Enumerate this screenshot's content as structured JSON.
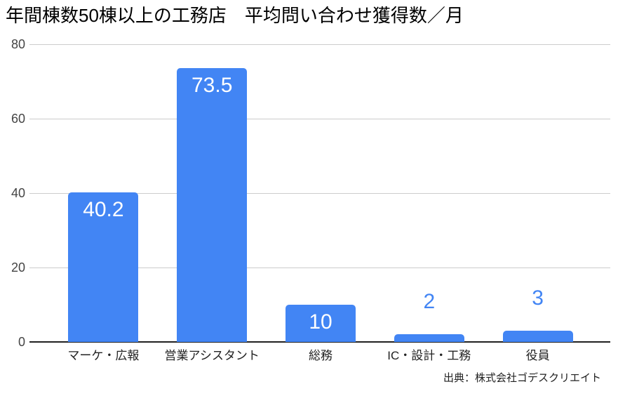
{
  "chart_data": {
    "type": "bar",
    "title": "年間棟数50棟以上の工務店　平均問い合わせ獲得数／月",
    "categories": [
      "マーケ・広報",
      "営業アシスタント",
      "総務",
      "IC・設計・工務",
      "役員"
    ],
    "values": [
      40.2,
      73.5,
      10,
      2,
      3
    ],
    "value_labels": [
      "40.2",
      "73.5",
      "10",
      "2",
      "3"
    ],
    "value_label_position": [
      "inside",
      "inside",
      "inside",
      "above",
      "above"
    ],
    "xlabel": "",
    "ylabel": "",
    "ylim": [
      0,
      80
    ],
    "yticks": [
      0,
      20,
      40,
      60,
      80
    ],
    "grid": true,
    "legend": "none",
    "bar_color": "#4285f4",
    "label_inside_color": "#ffffff",
    "label_above_color": "#4285f4",
    "gridline_color": "#cccccc",
    "baseline_color": "#212121",
    "source": "出典：株式会社ゴデスクリエイト"
  }
}
